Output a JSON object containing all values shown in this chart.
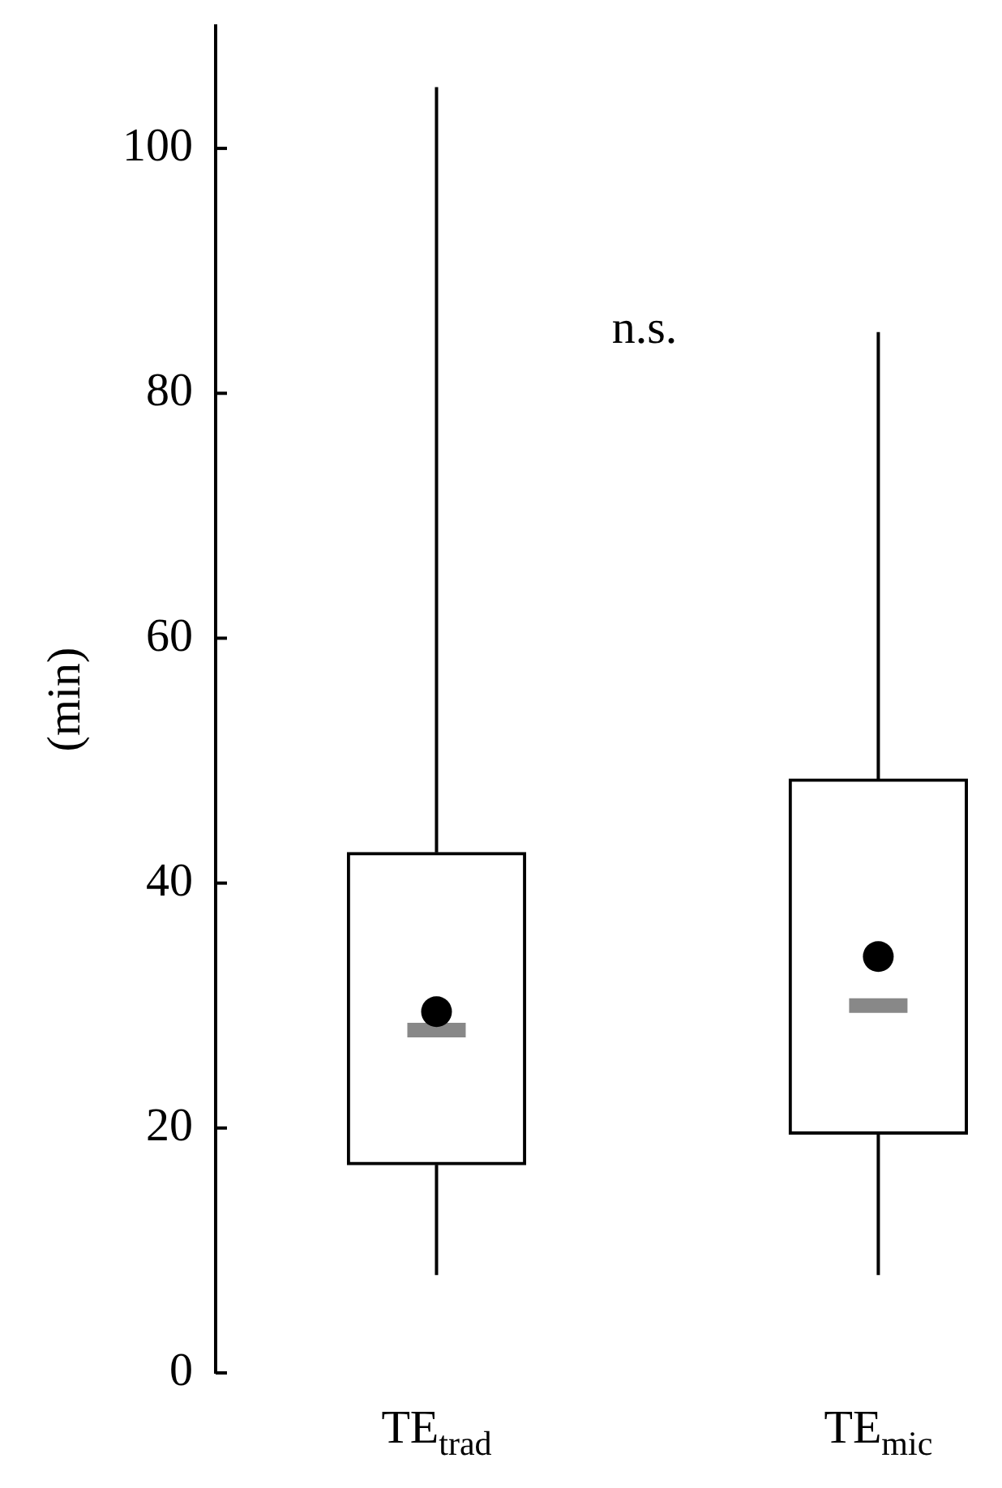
{
  "chart_data": {
    "type": "box",
    "categories": [
      "TE$_{trad}$",
      "TE$_{mic}$"
    ],
    "boxes": [
      {
        "low": 8,
        "q1": 17,
        "median": 28,
        "q3": 42.5,
        "high": 105,
        "mean": 29.5
      },
      {
        "low": 8,
        "q1": 19.5,
        "median": 30,
        "q3": 48.5,
        "high": 85,
        "mean": 34
      }
    ],
    "ylabel": "(min)",
    "ylim": [
      0,
      110
    ],
    "yticks": [
      0,
      20,
      40,
      60,
      80,
      100
    ],
    "annotations": [
      "n.s."
    ]
  }
}
